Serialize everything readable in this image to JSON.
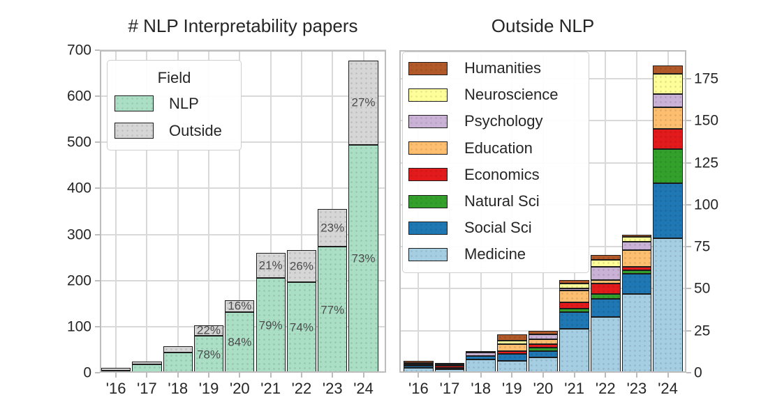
{
  "chart_data": [
    {
      "id": "nlp-interpretability-papers",
      "type": "bar",
      "stacked": true,
      "title": "# NLP Interpretability papers",
      "categories": [
        "'16",
        "'17",
        "'18",
        "'19",
        "'20",
        "'21",
        "'22",
        "'23",
        "'24"
      ],
      "ylim": [
        0,
        700
      ],
      "yticks": [
        0,
        100,
        200,
        300,
        400,
        500,
        600,
        700
      ],
      "yaxis_side": "left",
      "grid": true,
      "legend": {
        "title": "Field",
        "position": "upper-left",
        "order": "normal"
      },
      "series": [
        {
          "name": "NLP",
          "color": "#abdfc5",
          "values": [
            4,
            18,
            44,
            80,
            132,
            205,
            196,
            273,
            495
          ],
          "bar_labels": [
            "",
            "",
            "",
            "78%",
            "84%",
            "79%",
            "74%",
            "77%",
            "73%"
          ]
        },
        {
          "name": "Outside",
          "color": "#d6d6d6",
          "values": [
            7,
            6,
            13,
            23,
            25,
            55,
            70,
            82,
            183
          ],
          "bar_labels": [
            "",
            "",
            "",
            "22%",
            "16%",
            "21%",
            "26%",
            "23%",
            "27%"
          ]
        }
      ]
    },
    {
      "id": "outside-nlp",
      "type": "bar",
      "stacked": true,
      "title": "Outside NLP",
      "categories": [
        "'16",
        "'17",
        "'18",
        "'19",
        "'20",
        "'21",
        "'22",
        "'23",
        "'24"
      ],
      "ylim": [
        0,
        192
      ],
      "yticks": [
        0,
        25,
        50,
        75,
        100,
        125,
        150,
        175
      ],
      "yaxis_side": "right",
      "grid": true,
      "legend": {
        "title": "",
        "position": "upper-left",
        "order": "reverse"
      },
      "series": [
        {
          "name": "Medicine",
          "color": "#a6cee3",
          "values": [
            3,
            2,
            8,
            7,
            9,
            26,
            33,
            47,
            80
          ]
        },
        {
          "name": "Social Sci",
          "color": "#1f78b4",
          "values": [
            1,
            1,
            2,
            4,
            4,
            10,
            11,
            12,
            33
          ]
        },
        {
          "name": "Natural Sci",
          "color": "#33a02c",
          "values": [
            1,
            0,
            0,
            0,
            2,
            2,
            3,
            2,
            20
          ]
        },
        {
          "name": "Economics",
          "color": "#e31a1c",
          "values": [
            1,
            1,
            0,
            2,
            2,
            4,
            6,
            2,
            12
          ]
        },
        {
          "name": "Education",
          "color": "#fdbf6f",
          "values": [
            0,
            1,
            0,
            4,
            3,
            7,
            2,
            10,
            13
          ]
        },
        {
          "name": "Psychology",
          "color": "#cab2d6",
          "values": [
            0,
            0,
            2,
            0,
            3,
            1,
            8,
            5,
            8
          ]
        },
        {
          "name": "Neuroscience",
          "color": "#ffff99",
          "values": [
            0,
            0,
            1,
            2,
            0,
            3,
            4,
            3,
            12
          ]
        },
        {
          "name": "Humanities",
          "color": "#b15928",
          "values": [
            1,
            1,
            0,
            4,
            2,
            2,
            3,
            1,
            5
          ]
        }
      ]
    }
  ]
}
